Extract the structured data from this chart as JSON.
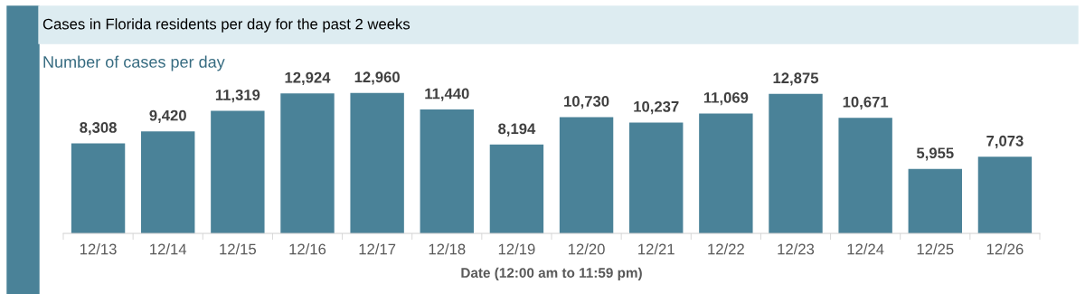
{
  "chart_data": {
    "type": "bar",
    "title": "Cases in Florida residents per day for the past 2 weeks",
    "subtitle": "Number of cases per day",
    "xlabel": "Date (12:00 am to 11:59 pm)",
    "categories": [
      "12/13",
      "12/14",
      "12/15",
      "12/16",
      "12/17",
      "12/18",
      "12/19",
      "12/20",
      "12/21",
      "12/22",
      "12/23",
      "12/24",
      "12/25",
      "12/26"
    ],
    "values": [
      8308,
      9420,
      11319,
      12924,
      12960,
      11440,
      8194,
      10730,
      10237,
      11069,
      12875,
      10671,
      5955,
      7073
    ],
    "color": "#4a8298",
    "value_labels": [
      "8,308",
      "9,420",
      "11,319",
      "12,924",
      "12,960",
      "11,440",
      "8,194",
      "10,730",
      "10,237",
      "11,069",
      "12,875",
      "10,671",
      "5,955",
      "7,073"
    ],
    "tick_labels": "x",
    "grid": false,
    "legend": false
  }
}
